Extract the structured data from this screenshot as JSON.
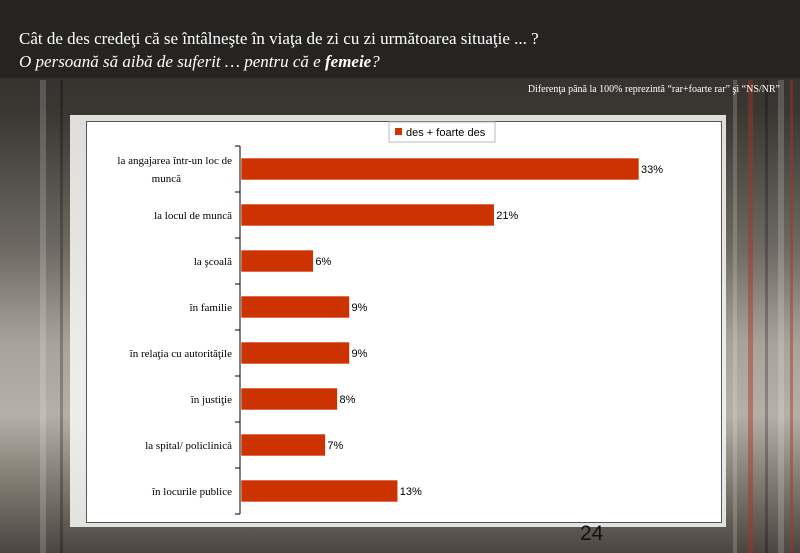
{
  "header": {
    "question": "Cât de des credeţi că se întâlneşte în viaţa de zi cu zi următoarea situaţie ... ?",
    "statement_prefix": "O persoană să aibă de suferit … pentru că e ",
    "statement_emphasis": "femeie",
    "statement_suffix": "?"
  },
  "note": "Diferenţa până la 100% reprezintă  “rar+foarte rar” şi “NS/NR”",
  "page_number": "24",
  "colors": {
    "bar": "#cc3300",
    "header_bg": "#262422"
  },
  "chart_data": {
    "type": "bar",
    "orientation": "horizontal",
    "categories": [
      "la angajarea într-un loc de muncă",
      "la locul de muncă",
      "la şcoală",
      "în familie",
      "în relaţia cu autorităţile",
      "în justiţie",
      "la spital/ policlinică",
      "în locurile publice"
    ],
    "series": [
      {
        "name": "des + foarte des",
        "values": [
          33,
          21,
          6,
          9,
          9,
          8,
          7,
          13
        ]
      }
    ],
    "data_labels": [
      "33%",
      "21%",
      "6%",
      "9%",
      "9%",
      "8%",
      "7%",
      "13%"
    ],
    "xlim": [
      0,
      40
    ],
    "grid": false,
    "legend_position": "top"
  }
}
